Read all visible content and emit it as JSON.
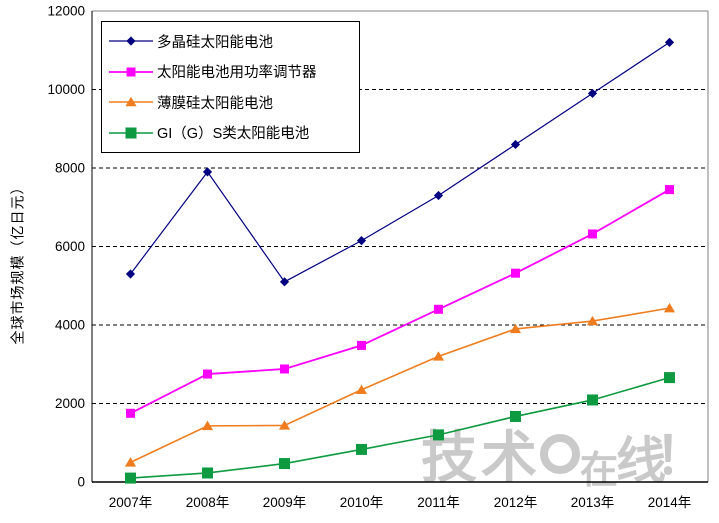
{
  "chart_data": {
    "type": "line",
    "title": "",
    "xlabel": "",
    "ylabel": "全球市场规模（亿日元）",
    "categories": [
      "2007年",
      "2008年",
      "2009年",
      "2010年",
      "2011年",
      "2012年",
      "2013年",
      "2014年"
    ],
    "y_ticks": [
      0,
      2000,
      4000,
      6000,
      8000,
      10000,
      12000
    ],
    "ylim": [
      0,
      12000
    ],
    "grid": "horizontal-dashed-black",
    "legend_position": "inside-top-left",
    "series": [
      {
        "name": "多晶硅太阳能电池",
        "color": "#000080",
        "marker": "diamond",
        "line_width": 1.2,
        "values": [
          5300,
          7900,
          5100,
          6150,
          7300,
          8600,
          9900,
          11200
        ]
      },
      {
        "name": "太阳能电池用功率调节器",
        "color": "#ff00ff",
        "marker": "square",
        "line_width": 1.8,
        "values": [
          1750,
          2750,
          2880,
          3480,
          4400,
          5320,
          6320,
          7450
        ]
      },
      {
        "name": "薄膜硅太阳能电池",
        "color": "#ef7d1f",
        "marker": "triangle",
        "line_width": 1.6,
        "values": [
          500,
          1430,
          1440,
          2350,
          3200,
          3900,
          4100,
          4430
        ]
      },
      {
        "name": "GI（G）S类太阳能电池",
        "color": "#0e9a40",
        "marker": "square-large",
        "line_width": 1.6,
        "values": [
          100,
          230,
          470,
          830,
          1200,
          1670,
          2090,
          2660
        ]
      }
    ]
  },
  "watermark": {
    "part1": "技术",
    "part2": "在",
    "part3": "线",
    "exclamation": "！"
  }
}
